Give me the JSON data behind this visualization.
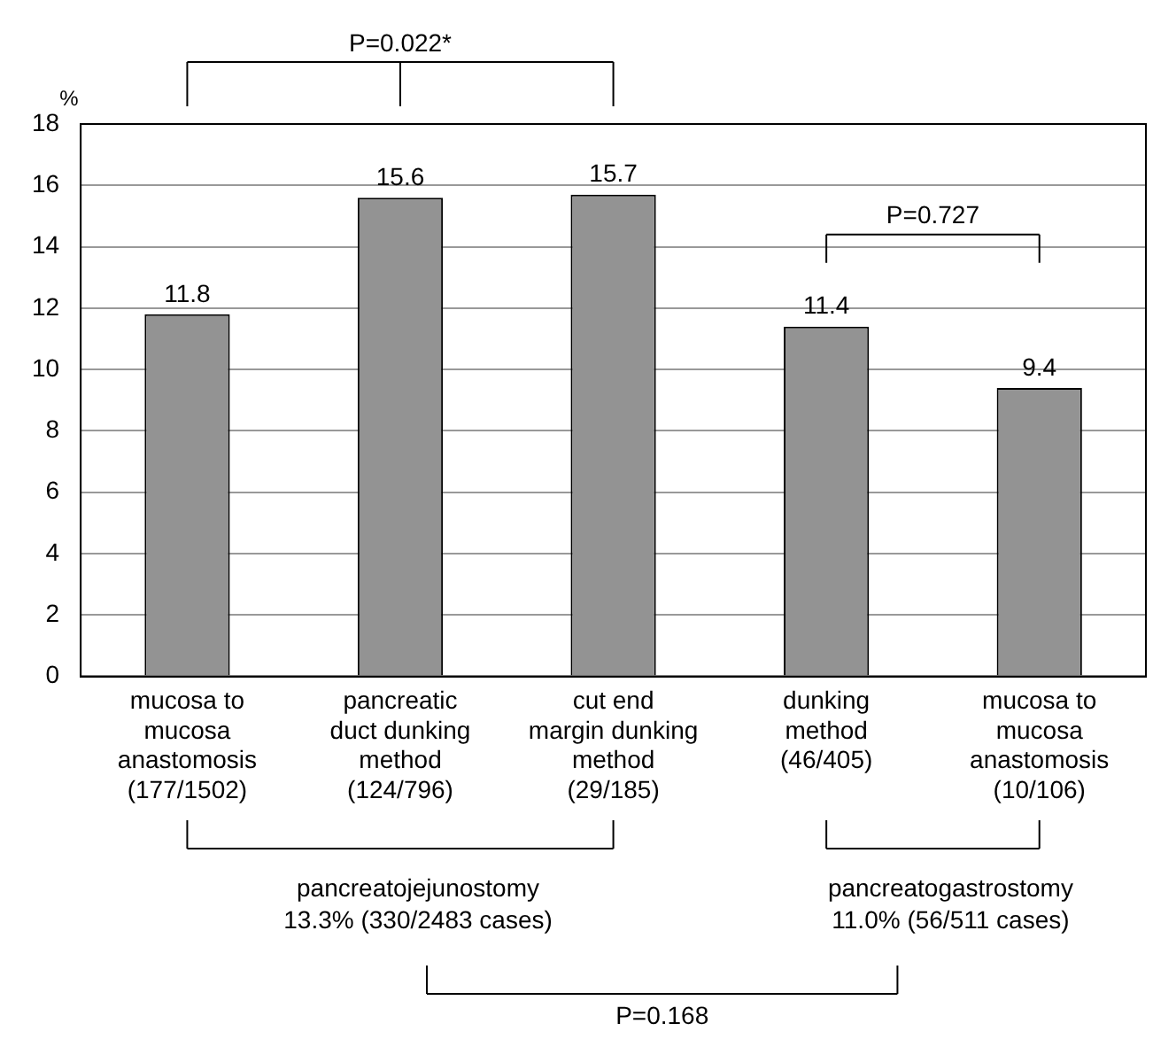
{
  "chart_data": {
    "type": "bar",
    "ylabel": "%",
    "categories": [
      "mucosa to\nmucosa\nanastomosis\n(177/1502)",
      "pancreatic\nduct dunking\nmethod\n(124/796)",
      "cut end\nmargin dunking\nmethod\n(29/185)",
      "dunking\nmethod\n(46/405)",
      "mucosa to\nmucosa\nanastomosis\n(10/106)"
    ],
    "values": [
      11.8,
      15.6,
      15.7,
      11.4,
      9.4
    ],
    "color": "#939393",
    "ylim": [
      0,
      18
    ],
    "yticks": [
      0,
      2,
      4,
      6,
      8,
      10,
      12,
      14,
      16,
      18
    ],
    "grid": "y",
    "data_labels": true,
    "legend": false,
    "annotations": [
      "P=0.022*",
      "P=0.727",
      "pancreatojejunostomy\n13.3% (330/2483 cases)",
      "pancreatogastrostomy\n11.0% (56/511 cases)",
      "P=0.168"
    ]
  }
}
